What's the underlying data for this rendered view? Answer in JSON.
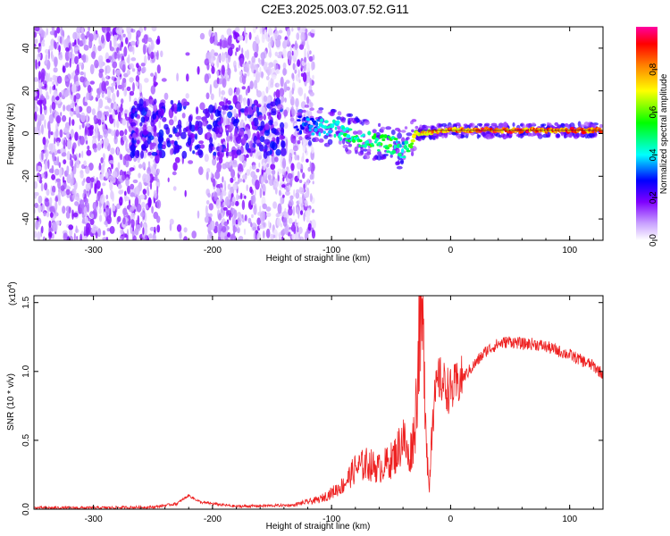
{
  "title": "C2E3.2025.003.07.52.G11",
  "chart_data": [
    {
      "type": "heatmap",
      "xlabel": "Height of straight line (km)",
      "ylabel": "Frequency (Hz)",
      "xlim": [
        -350,
        128
      ],
      "ylim": [
        -50,
        50
      ],
      "xticks": [
        -300,
        -200,
        -100,
        0,
        100
      ],
      "xtick_labels": [
        "-300",
        "-200",
        "-100",
        "0",
        "100"
      ],
      "yticks": [
        -40,
        -20,
        0,
        20,
        40
      ],
      "ytick_labels": [
        "-40",
        "-20",
        "0",
        "20",
        "40"
      ],
      "colorbar": {
        "label": "Normalized spectral amplitude",
        "range": [
          0,
          1
        ],
        "ticks": [
          0.0,
          0.2,
          0.4,
          0.6,
          0.8
        ],
        "tick_labels": [
          "0.0",
          "0.2",
          "0.4",
          "0.6",
          "0.8"
        ],
        "colormap": [
          "#ffffff",
          "#c8a0ff",
          "#7f00ff",
          "#0000ff",
          "#00ffff",
          "#00ff00",
          "#ffff00",
          "#ff8000",
          "#ff0000",
          "#ff00a0"
        ]
      },
      "features": {
        "noise_region_x": [
          -350,
          -115
        ],
        "gap_region_x": [
          -245,
          -205
        ],
        "strong_signal_ridge": [
          {
            "x": -130,
            "freq": 5,
            "amp": 0.3
          },
          {
            "x": -110,
            "freq": 3,
            "amp": 0.4
          },
          {
            "x": -90,
            "freq": 1,
            "amp": 0.5
          },
          {
            "x": -70,
            "freq": -3,
            "amp": 0.55
          },
          {
            "x": -50,
            "freq": -5,
            "amp": 0.6
          },
          {
            "x": -40,
            "freq": -8,
            "amp": 0.4
          },
          {
            "x": -30,
            "freq": 0,
            "amp": 0.8
          },
          {
            "x": 0,
            "freq": 1.5,
            "amp": 0.9
          },
          {
            "x": 50,
            "freq": 1.5,
            "amp": 0.95
          },
          {
            "x": 100,
            "freq": 1.5,
            "amp": 0.9
          },
          {
            "x": 128,
            "freq": 1.5,
            "amp": 0.9
          }
        ]
      }
    },
    {
      "type": "line",
      "xlabel": "Height of straight line (km)",
      "ylabel": "SNR (10 * v/v)",
      "scale_note": "(x10",
      "scale_exp": "4",
      "scale_close": ")",
      "xlim": [
        -350,
        128
      ],
      "ylim": [
        0,
        1.55
      ],
      "xticks": [
        -300,
        -200,
        -100,
        0,
        100
      ],
      "xtick_labels": [
        "-300",
        "-200",
        "-100",
        "0",
        "100"
      ],
      "yticks": [
        0,
        0.5,
        1.0,
        1.5
      ],
      "ytick_labels": [
        "0.0",
        "0.5",
        "1.0",
        "1.5"
      ],
      "color": "#ee2020",
      "series": [
        {
          "x": [
            -350,
            -300,
            -250,
            -230,
            -220,
            -210,
            -180,
            -130,
            -110,
            -100,
            -90,
            -80,
            -70,
            -60,
            -50,
            -45,
            -40,
            -35,
            -30,
            -28,
            -26,
            -24,
            -22,
            -20,
            -18,
            -15,
            -10,
            0,
            10,
            20,
            30,
            40,
            50,
            60,
            70,
            80,
            90,
            100,
            110,
            120,
            128
          ],
          "values": [
            0.01,
            0.01,
            0.015,
            0.04,
            0.1,
            0.05,
            0.02,
            0.03,
            0.06,
            0.1,
            0.15,
            0.25,
            0.28,
            0.25,
            0.3,
            0.35,
            0.45,
            0.3,
            0.5,
            0.8,
            1.2,
            1.1,
            0.9,
            0.4,
            0.1,
            0.7,
            0.95,
            0.85,
            0.95,
            1.05,
            1.15,
            1.2,
            1.22,
            1.2,
            1.2,
            1.18,
            1.15,
            1.12,
            1.08,
            1.04,
            0.98
          ]
        }
      ]
    }
  ]
}
